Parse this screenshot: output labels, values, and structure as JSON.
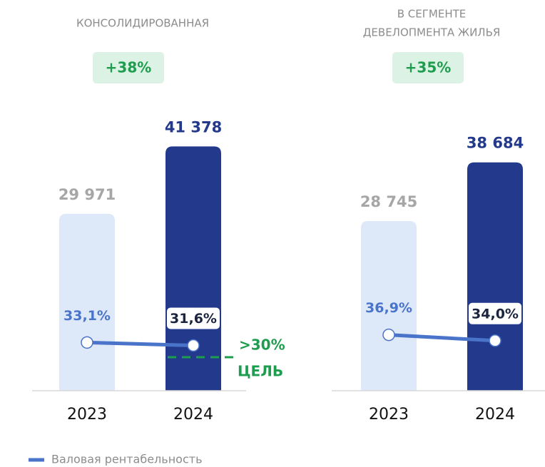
{
  "chart_data": [
    {
      "type": "bar",
      "title": [
        "КОНСОЛИДИРОВАННАЯ"
      ],
      "badge": "+38%",
      "categories": [
        "2023",
        "2024"
      ],
      "values": [
        29971,
        41378
      ],
      "value_labels": [
        "29 971",
        "41 378"
      ],
      "colors": [
        "#dde8f8",
        "#22398c"
      ],
      "label_colors": [
        "#a6a6a6",
        "#22398c"
      ],
      "ylim": [
        0,
        50000
      ],
      "y2lim": [
        20,
        40
      ],
      "series": [
        {
          "name": "Валовая рентабельность",
          "axis": "y2",
          "color": "#4a74c9",
          "values": [
            33.1,
            31.6
          ],
          "value_labels": [
            "33,1%",
            "31,6%"
          ]
        }
      ],
      "target": {
        "value": 30,
        "label": ">30%",
        "text": "ЦЕЛЬ",
        "color": "#1f9d4f"
      }
    },
    {
      "type": "bar",
      "title": [
        "В СЕГМЕНТЕ",
        "ДЕВЕЛОПМЕНТА ЖИЛЬЯ"
      ],
      "badge": "+35%",
      "categories": [
        "2023",
        "2024"
      ],
      "values": [
        28745,
        38684
      ],
      "value_labels": [
        "28 745",
        "38 684"
      ],
      "colors": [
        "#dde8f8",
        "#22398c"
      ],
      "label_colors": [
        "#a6a6a6",
        "#22398c"
      ],
      "ylim": [
        0,
        50000
      ],
      "y2lim": [
        20,
        40
      ],
      "series": [
        {
          "axis": "y2",
          "color": "#4a74c9",
          "values": [
            36.9,
            34.0
          ],
          "value_labels": [
            "36,9%",
            "34,0%"
          ]
        }
      ]
    }
  ]
}
